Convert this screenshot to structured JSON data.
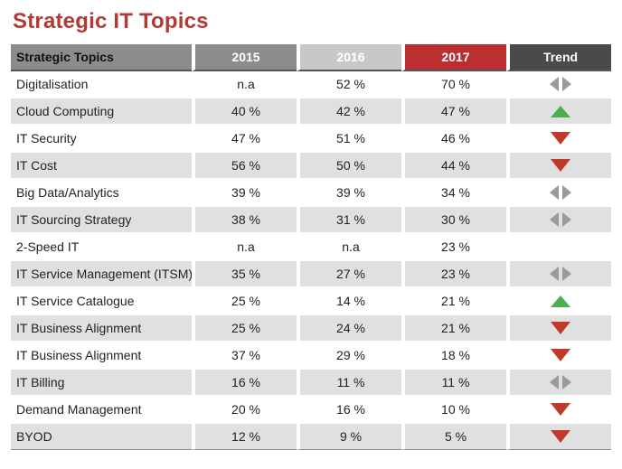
{
  "title": "Strategic IT Topics",
  "chart_data": {
    "type": "table",
    "title": "Strategic IT Topics",
    "columns": [
      "Strategic Topics",
      "2015",
      "2016",
      "2017",
      "Trend"
    ],
    "rows": [
      {
        "topic": "Digitalisation",
        "y2015": "n.a",
        "y2016": "52 %",
        "y2017": "70 %",
        "trend": "neutral"
      },
      {
        "topic": "Cloud Computing",
        "y2015": "40 %",
        "y2016": "42 %",
        "y2017": "47 %",
        "trend": "up"
      },
      {
        "topic": "IT Security",
        "y2015": "47 %",
        "y2016": "51 %",
        "y2017": "46 %",
        "trend": "down"
      },
      {
        "topic": "IT Cost",
        "y2015": "56 %",
        "y2016": "50 %",
        "y2017": "44 %",
        "trend": "down"
      },
      {
        "topic": "Big Data/Analytics",
        "y2015": "39 %",
        "y2016": "39 %",
        "y2017": "34 %",
        "trend": "neutral"
      },
      {
        "topic": "IT Sourcing Strategy",
        "y2015": "38 %",
        "y2016": "31 %",
        "y2017": "30 %",
        "trend": "neutral"
      },
      {
        "topic": "2-Speed IT",
        "y2015": "n.a",
        "y2016": "n.a",
        "y2017": "23 %",
        "trend": "none"
      },
      {
        "topic": "IT Service Management (ITSM)",
        "y2015": "35 %",
        "y2016": "27 %",
        "y2017": "23 %",
        "trend": "neutral"
      },
      {
        "topic": "IT Service Catalogue",
        "y2015": "25 %",
        "y2016": "14 %",
        "y2017": "21 %",
        "trend": "up"
      },
      {
        "topic": "IT Business Alignment",
        "y2015": "25 %",
        "y2016": "24 %",
        "y2017": "21 %",
        "trend": "down"
      },
      {
        "topic": "IT Business Alignment",
        "y2015": "37 %",
        "y2016": "29 %",
        "y2017": "18 %",
        "trend": "down"
      },
      {
        "topic": "IT Billing",
        "y2015": "16 %",
        "y2016": "11 %",
        "y2017": "11 %",
        "trend": "neutral"
      },
      {
        "topic": "Demand Management",
        "y2015": "20 %",
        "y2016": "16 %",
        "y2017": "10 %",
        "trend": "down"
      },
      {
        "topic": "BYOD",
        "y2015": "12 %",
        "y2016": "9 %",
        "y2017": "5 %",
        "trend": "down"
      }
    ]
  },
  "colors": {
    "title": "#b03a36",
    "up": "#4caf50",
    "down": "#c0392b",
    "neutral": "#9a9a9a",
    "header_2015": "#8c8c8c",
    "header_2016": "#c8c8c8",
    "header_2017": "#bc2f31",
    "header_trend": "#4a4a4a",
    "row_alt": "#e0e0e0"
  }
}
